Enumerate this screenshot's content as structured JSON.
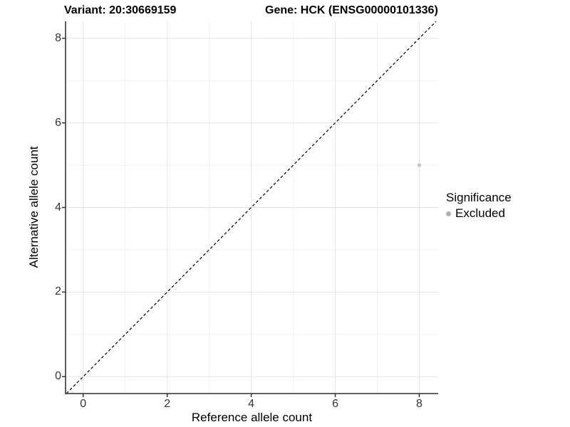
{
  "chart_data": {
    "type": "scatter",
    "title_variant": "Variant: 20:30669159",
    "title_gene": "Gene: HCK (ENSG00000101336)",
    "xlabel": "Reference allele count",
    "ylabel": "Alternative allele count",
    "xlim": [
      -0.42,
      8.45
    ],
    "ylim": [
      -0.4,
      8.4
    ],
    "xticks": [
      0,
      2,
      4,
      6,
      8
    ],
    "yticks": [
      0,
      2,
      4,
      6,
      8
    ],
    "grid": "major gridlines at even integers, minor gridlines at odd integers, grid on",
    "points": [
      {
        "x": 8,
        "y": 5,
        "series": "Excluded"
      }
    ],
    "reference_line": {
      "type": "identity",
      "slope": 1,
      "intercept": 0,
      "style": "dashed"
    },
    "legend": {
      "title": "Significance",
      "position": "right",
      "items": [
        {
          "label": "Excluded",
          "color": "#b8b8b8"
        }
      ]
    },
    "colors": {
      "point_excluded": "#c2c2c2",
      "legend_key": "#b0b0b0",
      "grid_major": "#e4e4e4",
      "grid_minor": "#f1f1f1",
      "axis_line": "#4a4a4a",
      "tick_mark": "#333333",
      "identity_line": "#000000",
      "background": "#ffffff"
    }
  }
}
